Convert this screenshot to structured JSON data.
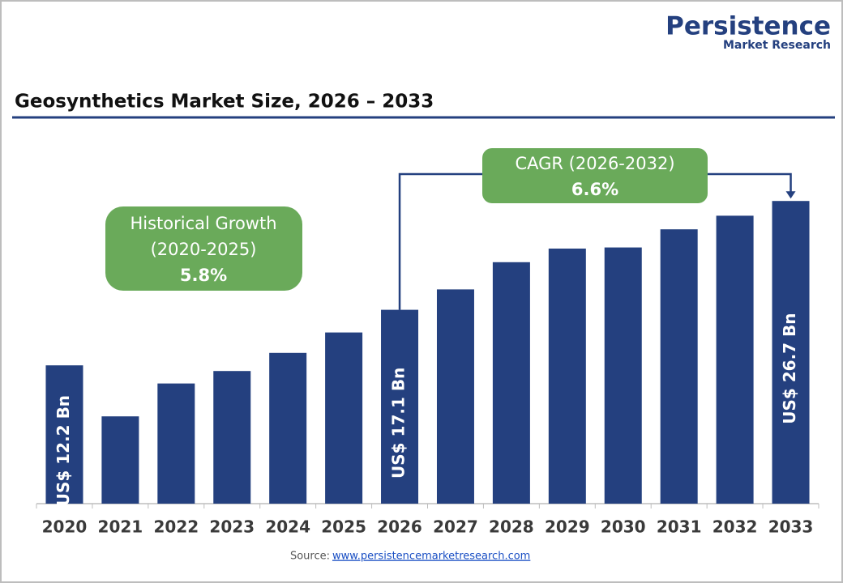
{
  "brand": {
    "name": "Persistence",
    "tagline": "Market Research"
  },
  "source": {
    "label": "Source:",
    "link": "www.persistencemarketresearch.com"
  },
  "chart_data": {
    "type": "bar",
    "title": "Geosynthetics Market Size, 2026 – 2033",
    "categories": [
      "2020",
      "2021",
      "2022",
      "2023",
      "2024",
      "2025",
      "2026",
      "2027",
      "2028",
      "2029",
      "2030",
      "2031",
      "2032",
      "2033"
    ],
    "values": [
      12.2,
      7.7,
      10.6,
      11.7,
      13.3,
      15.1,
      17.1,
      18.9,
      21.3,
      22.5,
      22.6,
      24.2,
      25.4,
      26.7
    ],
    "value_labels": [
      "US$ 12.2 Bn",
      null,
      null,
      null,
      null,
      null,
      "US$ 17.1 Bn",
      null,
      null,
      null,
      null,
      null,
      null,
      "US$ 26.7 Bn"
    ],
    "color": "#24407f",
    "ylim": [
      0,
      28
    ],
    "annotations": {
      "historical": [
        "Historical Growth",
        "(2020-2025)",
        "5.8%"
      ],
      "cagr": [
        "CAGR (2026-2032)",
        "6.6%"
      ]
    }
  }
}
